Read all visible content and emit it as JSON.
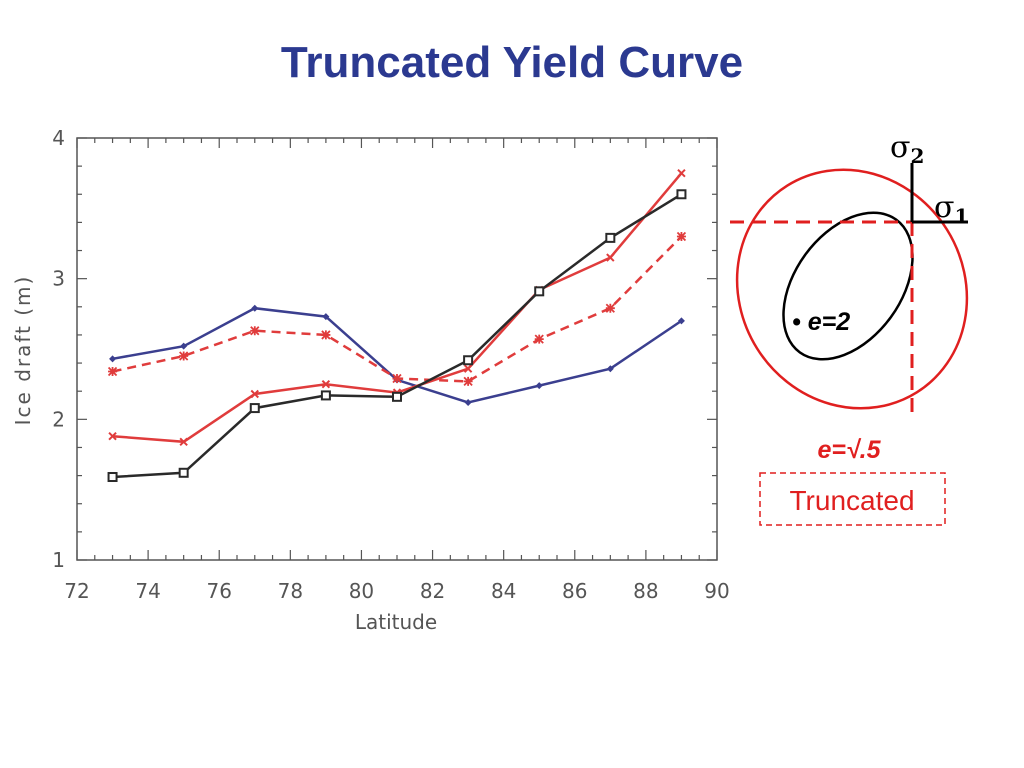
{
  "slide": {
    "title": "Truncated Yield Curve"
  },
  "chart_data": {
    "type": "line",
    "xlabel": "Latitude",
    "ylabel": "Ice draft (m)",
    "xlim": [
      72,
      90
    ],
    "ylim": [
      1,
      4
    ],
    "xticks": [
      72,
      74,
      76,
      78,
      80,
      82,
      84,
      86,
      88,
      90
    ],
    "yticks": [
      1,
      2,
      3,
      4
    ],
    "x": [
      73,
      75,
      77,
      79,
      81,
      83,
      85,
      87,
      89
    ],
    "grid": false,
    "series": [
      {
        "values": [
          2.43,
          2.52,
          2.79,
          2.73,
          2.28,
          2.12,
          2.24,
          2.36,
          2.7
        ],
        "color": "#3b3f8f",
        "dash": "solid",
        "marker": "diamond"
      },
      {
        "values": [
          2.34,
          2.45,
          2.63,
          2.6,
          2.29,
          2.27,
          2.57,
          2.79,
          3.3
        ],
        "color": "#e03c3c",
        "dash": "dashed",
        "marker": "asterisk"
      },
      {
        "values": [
          1.88,
          1.84,
          2.18,
          2.25,
          2.19,
          2.36,
          2.92,
          3.15,
          3.75
        ],
        "color": "#e03c3c",
        "dash": "solid",
        "marker": "x"
      },
      {
        "values": [
          1.59,
          1.62,
          2.08,
          2.17,
          2.16,
          2.42,
          2.91,
          3.29,
          3.6
        ],
        "color": "#2a2a2a",
        "dash": "solid",
        "marker": "square"
      }
    ]
  },
  "diagram": {
    "sigma2_symbol": "σ",
    "sigma2_sub": "2",
    "sigma1_symbol": "σ",
    "sigma1_sub": "1",
    "inner_label": "• e=2",
    "outer_label": "e=√.5",
    "truncated_label": "Truncated",
    "colors": {
      "red": "#e01f1f",
      "black": "#000000"
    }
  }
}
